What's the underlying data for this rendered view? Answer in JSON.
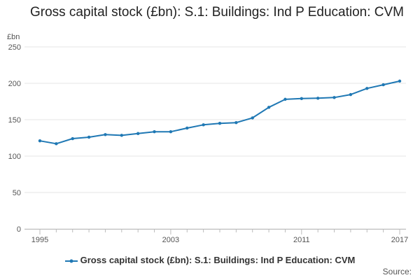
{
  "chart_data": {
    "type": "line",
    "title": "Gross capital stock (£bn): S.1: Buildings: Ind P Education: CVM",
    "ylabel": "£bn",
    "xlabel": "",
    "ylim": [
      0,
      250
    ],
    "yticks": [
      0,
      50,
      100,
      150,
      200,
      250
    ],
    "xlim": [
      1995,
      2017
    ],
    "xticks": [
      1995,
      2003,
      2011,
      2017
    ],
    "grid": true,
    "legend_position": "bottom",
    "series": [
      {
        "name": "Gross capital stock (£bn): S.1: Buildings: Ind P Education: CVM",
        "color": "#1f78b4",
        "x": [
          1995,
          1996,
          1997,
          1998,
          1999,
          2000,
          2001,
          2002,
          2003,
          2004,
          2005,
          2006,
          2007,
          2008,
          2009,
          2010,
          2011,
          2012,
          2013,
          2014,
          2015,
          2016,
          2017
        ],
        "values": [
          121,
          117,
          124,
          126,
          129.5,
          128.5,
          131,
          133.5,
          133.5,
          138.5,
          143,
          145,
          146,
          152.5,
          167,
          178,
          179,
          179.5,
          180.5,
          184.5,
          193,
          198,
          203
        ]
      }
    ]
  },
  "source_label": "Source:"
}
